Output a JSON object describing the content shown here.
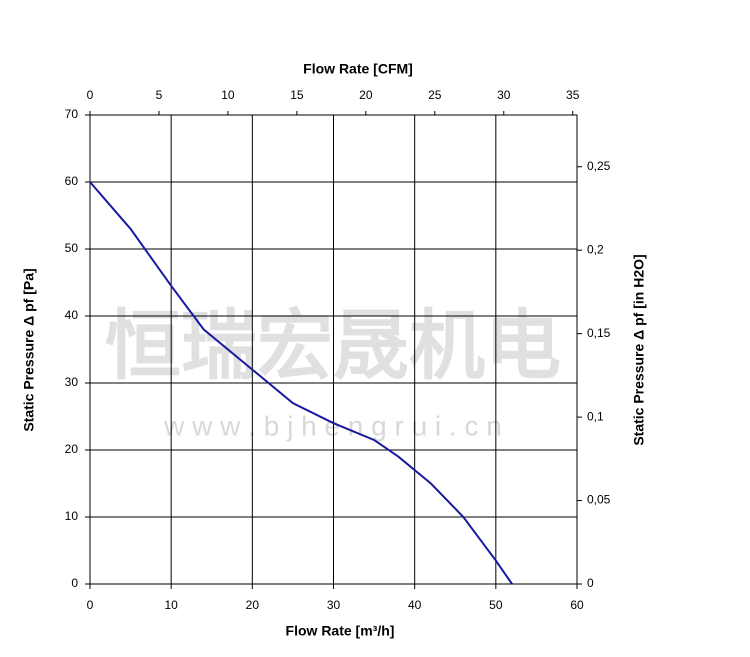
{
  "chart_data": {
    "type": "line",
    "x_label": "Flow Rate [m³/h]",
    "x2_label": "Flow Rate [CFM]",
    "y_label": "Static Pressure Δ pf [Pa]",
    "y2_label": "Static Pressure Δ pf [in H2O]",
    "watermark": [
      "恒瑞宏晟机电",
      "w w w . b j h e n g r u i . c n"
    ],
    "x": [
      0,
      5,
      10,
      14,
      20,
      25,
      30,
      35,
      38,
      42,
      46,
      50,
      52
    ],
    "series": [
      {
        "color": "#1a1aa0",
        "values": [
          60,
          53,
          44.5,
          38,
          32,
          27,
          24,
          21.5,
          19,
          15,
          10,
          3.5,
          0
        ]
      }
    ],
    "xlim": [
      0,
      60
    ],
    "xticks": [
      0,
      10,
      20,
      30,
      40,
      50,
      60
    ],
    "x2lim": [
      0,
      35.31
    ],
    "x2ticks": [
      0,
      5,
      10,
      15,
      20,
      25,
      30,
      35
    ],
    "ylim": [
      0,
      70
    ],
    "yticks": [
      0,
      10,
      20,
      30,
      40,
      50,
      60,
      70
    ],
    "y2lim": [
      0,
      0.281
    ],
    "y2ticks": [
      0,
      {
        "value": 0.05,
        "label": "0,05"
      },
      {
        "value": 0.1,
        "label": "0,1"
      },
      {
        "value": 0.15,
        "label": "0,15"
      },
      {
        "value": 0.2,
        "label": "0,2"
      },
      {
        "value": 0.25,
        "label": "0,25"
      }
    ],
    "grid": true
  }
}
